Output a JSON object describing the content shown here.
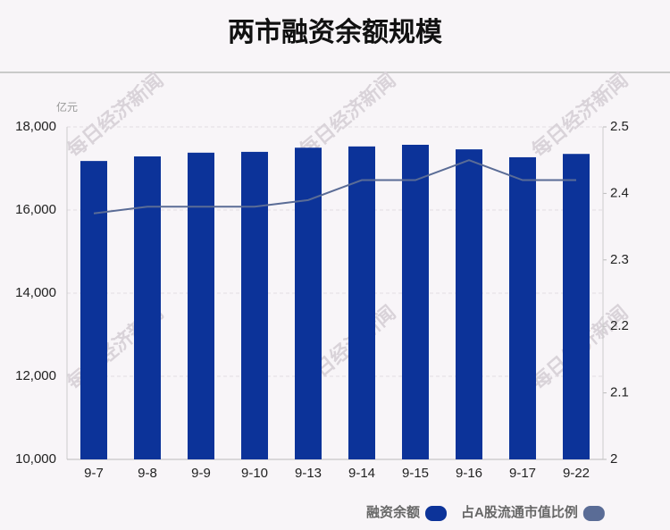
{
  "chart_data": {
    "type": "bar_line",
    "title": "两市融资余额规模",
    "unit": "亿元",
    "watermark": "每日经济新闻",
    "categories": [
      "9-7",
      "9-8",
      "9-9",
      "9-10",
      "9-13",
      "9-14",
      "9-15",
      "9-16",
      "9-17",
      "9-22"
    ],
    "series": [
      {
        "name": "融资余额",
        "color": "#0c3399",
        "type": "bar",
        "values": [
          17180,
          17290,
          17380,
          17400,
          17500,
          17530,
          17570,
          17460,
          17270,
          17350
        ]
      },
      {
        "name": "占A股流通市值比例",
        "color": "#5a6c96",
        "type": "line",
        "axis": "y2",
        "values": [
          2.37,
          2.38,
          2.38,
          2.38,
          2.39,
          2.42,
          2.42,
          2.45,
          2.42,
          2.42
        ]
      }
    ],
    "ylim": [
      10000,
      18000
    ],
    "yticks": [
      {
        "value": 10000,
        "label": "10,000"
      },
      {
        "value": 12000,
        "label": "12,000"
      },
      {
        "value": 14000,
        "label": "14,000"
      },
      {
        "value": 16000,
        "label": "16,000"
      },
      {
        "value": 18000,
        "label": "18,000"
      }
    ],
    "y2lim": [
      2,
      2.5
    ],
    "y2ticks": [
      2,
      2.1,
      2.2,
      2.3,
      2.4,
      2.5
    ],
    "grid": true
  }
}
